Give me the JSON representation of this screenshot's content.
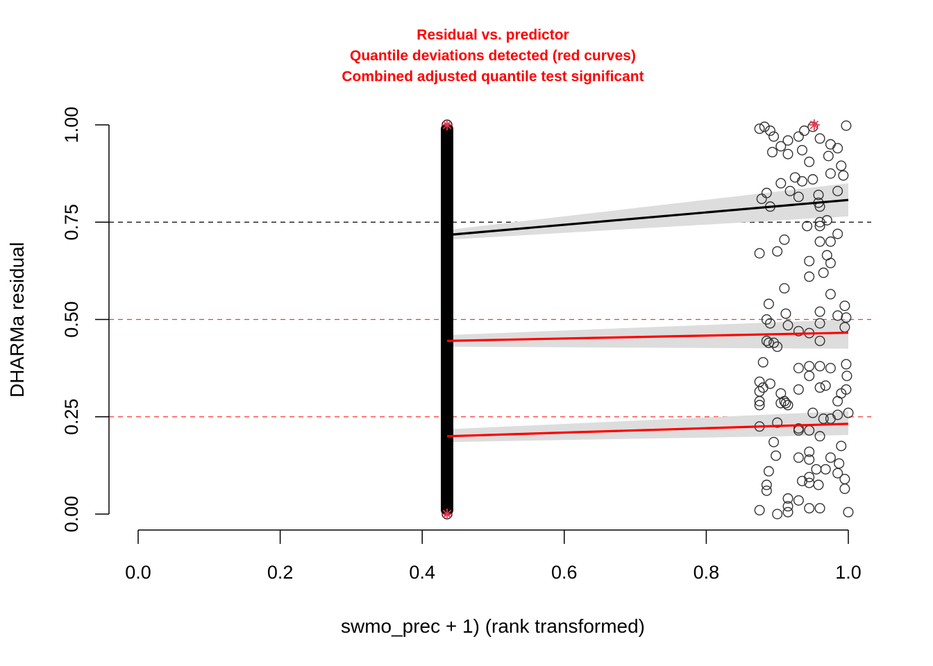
{
  "chart_data": {
    "type": "scatter",
    "title_lines": [
      "Residual vs. predictor",
      "Quantile deviations detected (red curves)",
      "Combined adjusted quantile test significant"
    ],
    "xlabel": "swmo_prec + 1) (rank transformed)",
    "ylabel": "DHARMa residual",
    "xlim": [
      0.0,
      1.0
    ],
    "ylim": [
      0.0,
      1.0
    ],
    "x_ticks": [
      "0.0",
      "0.2",
      "0.4",
      "0.6",
      "0.8",
      "1.0"
    ],
    "y_ticks": [
      "0.00",
      "0.25",
      "0.50",
      "0.75",
      "1.00"
    ],
    "reference_lines": [
      {
        "y": 0.25,
        "color": "#ff0000",
        "style": "dashed"
      },
      {
        "y": 0.5,
        "color": "#ff0000",
        "style": "dashed"
      },
      {
        "y": 0.75,
        "color": "#000000",
        "style": "dashed"
      }
    ],
    "quantile_fits": [
      {
        "quantile": 0.75,
        "color": "#000000",
        "x": [
          0.435,
          1.0
        ],
        "y": [
          0.717,
          0.807
        ],
        "band_low": [
          0.705,
          0.765
        ],
        "band_high": [
          0.73,
          0.85
        ]
      },
      {
        "quantile": 0.5,
        "color": "#ff0000",
        "x": [
          0.435,
          1.0
        ],
        "y": [
          0.445,
          0.466
        ],
        "band_low": [
          0.43,
          0.425
        ],
        "band_high": [
          0.46,
          0.5
        ]
      },
      {
        "quantile": 0.25,
        "color": "#ff0000",
        "x": [
          0.435,
          1.0
        ],
        "y": [
          0.2,
          0.232
        ],
        "band_low": [
          0.185,
          0.203
        ],
        "band_high": [
          0.218,
          0.265
        ]
      }
    ],
    "vertical_cluster": {
      "x": 0.435,
      "y_range": [
        0.0,
        1.0
      ]
    },
    "points": [
      [
        0.875,
        0.99
      ],
      [
        0.882,
        0.995
      ],
      [
        0.89,
        0.985
      ],
      [
        0.895,
        0.97
      ],
      [
        0.915,
        0.925
      ],
      [
        0.93,
        0.97
      ],
      [
        0.938,
        0.985
      ],
      [
        0.95,
        0.995
      ],
      [
        0.96,
        0.965
      ],
      [
        0.975,
        0.95
      ],
      [
        0.997,
        0.998
      ],
      [
        0.893,
        0.93
      ],
      [
        0.905,
        0.945
      ],
      [
        0.915,
        0.96
      ],
      [
        0.935,
        0.935
      ],
      [
        0.945,
        0.905
      ],
      [
        0.972,
        0.92
      ],
      [
        0.985,
        0.94
      ],
      [
        0.99,
        0.895
      ],
      [
        0.905,
        0.85
      ],
      [
        0.918,
        0.83
      ],
      [
        0.925,
        0.865
      ],
      [
        0.935,
        0.855
      ],
      [
        0.95,
        0.86
      ],
      [
        0.975,
        0.875
      ],
      [
        0.993,
        0.87
      ],
      [
        0.878,
        0.81
      ],
      [
        0.885,
        0.825
      ],
      [
        0.89,
        0.79
      ],
      [
        0.93,
        0.815
      ],
      [
        0.958,
        0.82
      ],
      [
        0.958,
        0.8
      ],
      [
        0.96,
        0.79
      ],
      [
        0.985,
        0.83
      ],
      [
        0.97,
        0.755
      ],
      [
        0.96,
        0.75
      ],
      [
        0.96,
        0.74
      ],
      [
        0.942,
        0.74
      ],
      [
        0.875,
        0.67
      ],
      [
        0.9,
        0.675
      ],
      [
        0.91,
        0.705
      ],
      [
        0.945,
        0.65
      ],
      [
        0.96,
        0.7
      ],
      [
        0.975,
        0.7
      ],
      [
        0.985,
        0.72
      ],
      [
        0.965,
        0.62
      ],
      [
        0.945,
        0.61
      ],
      [
        0.97,
        0.665
      ],
      [
        0.975,
        0.645
      ],
      [
        0.91,
        0.58
      ],
      [
        0.888,
        0.54
      ],
      [
        0.89,
        0.49
      ],
      [
        0.885,
        0.5
      ],
      [
        0.912,
        0.515
      ],
      [
        0.915,
        0.485
      ],
      [
        0.93,
        0.47
      ],
      [
        0.945,
        0.465
      ],
      [
        0.96,
        0.52
      ],
      [
        0.96,
        0.49
      ],
      [
        0.975,
        0.565
      ],
      [
        0.985,
        0.51
      ],
      [
        0.995,
        0.535
      ],
      [
        0.995,
        0.48
      ],
      [
        0.997,
        0.505
      ],
      [
        0.885,
        0.445
      ],
      [
        0.888,
        0.44
      ],
      [
        0.895,
        0.44
      ],
      [
        0.9,
        0.43
      ],
      [
        0.96,
        0.445
      ],
      [
        0.88,
        0.39
      ],
      [
        0.93,
        0.375
      ],
      [
        0.945,
        0.38
      ],
      [
        0.945,
        0.355
      ],
      [
        0.96,
        0.38
      ],
      [
        0.975,
        0.375
      ],
      [
        0.997,
        0.385
      ],
      [
        0.998,
        0.355
      ],
      [
        0.875,
        0.34
      ],
      [
        0.875,
        0.315
      ],
      [
        0.88,
        0.325
      ],
      [
        0.89,
        0.335
      ],
      [
        0.905,
        0.31
      ],
      [
        0.91,
        0.29
      ],
      [
        0.912,
        0.285
      ],
      [
        0.915,
        0.28
      ],
      [
        0.93,
        0.32
      ],
      [
        0.96,
        0.325
      ],
      [
        0.968,
        0.33
      ],
      [
        0.985,
        0.29
      ],
      [
        0.99,
        0.31
      ],
      [
        0.997,
        0.32
      ],
      [
        0.875,
        0.29
      ],
      [
        0.875,
        0.28
      ],
      [
        0.875,
        0.225
      ],
      [
        0.905,
        0.285
      ],
      [
        0.95,
        0.26
      ],
      [
        0.965,
        0.245
      ],
      [
        0.975,
        0.245
      ],
      [
        0.985,
        0.255
      ],
      [
        1.0,
        0.26
      ],
      [
        0.9,
        0.235
      ],
      [
        0.93,
        0.22
      ],
      [
        0.93,
        0.215
      ],
      [
        0.945,
        0.215
      ],
      [
        0.96,
        0.2
      ],
      [
        0.895,
        0.185
      ],
      [
        0.898,
        0.15
      ],
      [
        0.93,
        0.145
      ],
      [
        0.945,
        0.16
      ],
      [
        0.945,
        0.14
      ],
      [
        0.955,
        0.115
      ],
      [
        0.968,
        0.115
      ],
      [
        0.975,
        0.145
      ],
      [
        0.99,
        0.175
      ],
      [
        0.987,
        0.13
      ],
      [
        0.888,
        0.11
      ],
      [
        0.885,
        0.075
      ],
      [
        0.885,
        0.06
      ],
      [
        0.935,
        0.085
      ],
      [
        0.945,
        0.095
      ],
      [
        0.945,
        0.08
      ],
      [
        0.958,
        0.075
      ],
      [
        0.985,
        0.105
      ],
      [
        0.995,
        0.09
      ],
      [
        0.995,
        0.065
      ],
      [
        0.875,
        0.01
      ],
      [
        0.9,
        0.0
      ],
      [
        0.915,
        0.005
      ],
      [
        0.915,
        0.02
      ],
      [
        0.915,
        0.04
      ],
      [
        0.93,
        0.035
      ],
      [
        0.945,
        0.015
      ],
      [
        0.96,
        0.015
      ],
      [
        1.0,
        0.005
      ]
    ],
    "outliers": [
      [
        0.435,
        1.0
      ],
      [
        0.435,
        0.0
      ],
      [
        0.952,
        1.0
      ]
    ],
    "colors": {
      "points": "#333333",
      "outlier": "#e8384f",
      "band": "#dddddd",
      "red": "#ff0000"
    }
  }
}
